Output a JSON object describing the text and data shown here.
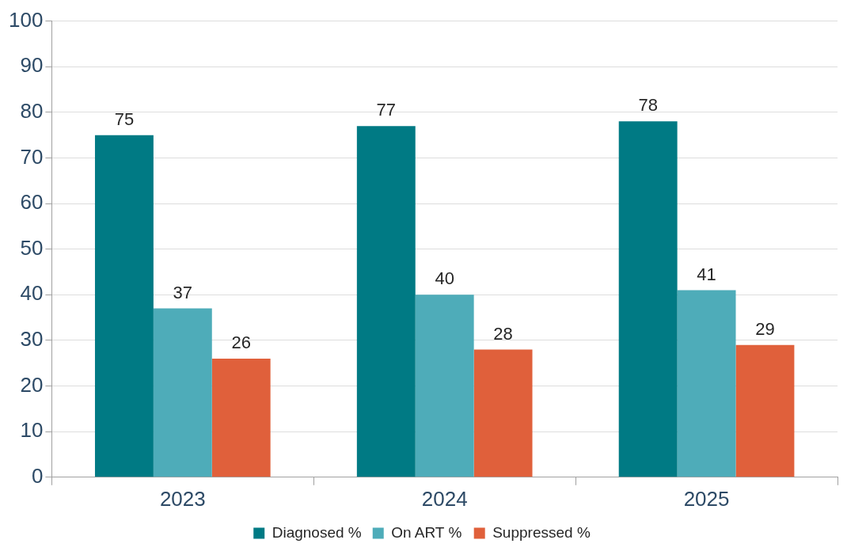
{
  "chart_data": {
    "type": "bar",
    "categories": [
      "2023",
      "2024",
      "2025"
    ],
    "series": [
      {
        "name": "Diagnosed %",
        "color": "#007a84",
        "values": [
          75,
          77,
          78
        ]
      },
      {
        "name": "On ART %",
        "color": "#4eacb9",
        "values": [
          37,
          40,
          41
        ]
      },
      {
        "name": "Suppressed %",
        "color": "#e0603b",
        "values": [
          26,
          28,
          29
        ]
      }
    ],
    "ylim": [
      0,
      100
    ],
    "yticks": [
      0,
      10,
      20,
      30,
      40,
      50,
      60,
      70,
      80,
      90,
      100
    ],
    "grid": "y",
    "legend": "bottom",
    "data_labels": true
  }
}
